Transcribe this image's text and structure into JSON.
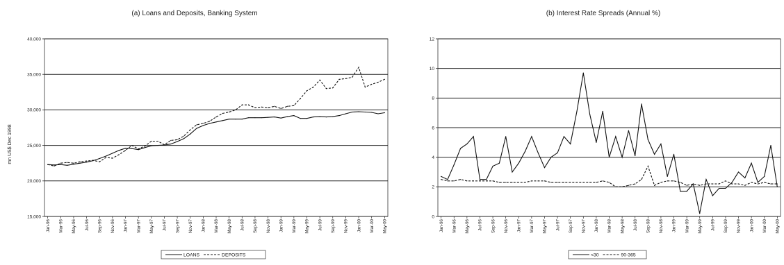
{
  "chart_data": [
    {
      "type": "line",
      "title": "(a) Loans and Deposits, Banking System",
      "ylabel": "mn US$ Dec 1998",
      "xlabel": "",
      "ylim": [
        15000,
        40000
      ],
      "yticks": [
        "15,000",
        "20,000",
        "25,000",
        "30,000",
        "35,000",
        "40,000"
      ],
      "ytick_values": [
        15000,
        20000,
        25000,
        30000,
        35000,
        40000
      ],
      "grid": "horizontal",
      "legend_position": "bottom",
      "x": [
        "Jan-96",
        "Feb-96",
        "Mar-96",
        "Apr-96",
        "May-96",
        "Jun-96",
        "Jul-96",
        "Aug-96",
        "Sep-96",
        "Oct-96",
        "Nov-96",
        "Dec-96",
        "Jan-97",
        "Feb-97",
        "Mar-97",
        "Apr-97",
        "May-97",
        "Jun-97",
        "Jul-97",
        "Aug-97",
        "Sep-97",
        "Oct-97",
        "Nov-97",
        "Dec-97",
        "Jan-98",
        "Feb-98",
        "Mar-98",
        "Apr-98",
        "May-98",
        "Jun-98",
        "Jul-98",
        "Aug-98",
        "Sep-98",
        "Oct-98",
        "Nov-98",
        "Dec-98",
        "Jan-99",
        "Feb-99",
        "Mar-99",
        "Apr-99",
        "May-99",
        "Jun-99",
        "Jul-99",
        "Aug-99",
        "Sep-99",
        "Oct-99",
        "Nov-99",
        "Dec-99",
        "Jan-00",
        "Feb-00",
        "Mar-00",
        "Apr-00",
        "May-00"
      ],
      "xtick_labels": [
        "Jan-96",
        "Mar-96",
        "May-96",
        "Jul-96",
        "Sep-96",
        "Nov-96",
        "Jan-97",
        "Mar-97",
        "May-97",
        "Jul-97",
        "Sep-97",
        "Nov-97",
        "Jan-98",
        "Mar-98",
        "May-98",
        "Jul-98",
        "Sep-98",
        "Nov-98",
        "Jan-99",
        "Mar-99",
        "May-99",
        "Jul-99",
        "Sep-99",
        "Nov-99",
        "Jan-00",
        "Mar-00",
        "May-00"
      ],
      "series": [
        {
          "name": "LOANS",
          "style": "solid",
          "values": [
            22300,
            22250,
            22300,
            22200,
            22350,
            22500,
            22650,
            22850,
            23150,
            23500,
            23900,
            24300,
            24600,
            24550,
            24400,
            24700,
            24950,
            25000,
            25050,
            25200,
            25550,
            25950,
            26600,
            27400,
            27800,
            28100,
            28300,
            28500,
            28700,
            28700,
            28700,
            28900,
            28900,
            28900,
            28950,
            29000,
            28850,
            29050,
            29200,
            28800,
            28800,
            29000,
            29050,
            29000,
            29050,
            29200,
            29450,
            29700,
            29750,
            29700,
            29650,
            29450,
            29600
          ]
        },
        {
          "name": "DEPOSITS",
          "style": "dashed",
          "values": [
            22300,
            22100,
            22500,
            22600,
            22500,
            22700,
            22800,
            22900,
            22700,
            23300,
            23200,
            23700,
            24300,
            25000,
            24500,
            24900,
            25600,
            25600,
            25100,
            25700,
            25800,
            26300,
            27200,
            27900,
            28100,
            28400,
            29000,
            29500,
            29700,
            30000,
            30700,
            30700,
            30300,
            30400,
            30300,
            30500,
            30200,
            30500,
            30600,
            31600,
            32700,
            33200,
            34200,
            33000,
            33100,
            34300,
            34400,
            34600,
            36000,
            33200,
            33600,
            33900,
            34300
          ]
        }
      ]
    },
    {
      "type": "line",
      "title": "(b) Interest Rate Spreads (Annual %)",
      "ylabel": "",
      "xlabel": "",
      "ylim": [
        0,
        12
      ],
      "yticks": [
        "0",
        "2",
        "4",
        "6",
        "8",
        "10",
        "12"
      ],
      "ytick_values": [
        0,
        2,
        4,
        6,
        8,
        10,
        12
      ],
      "grid": "horizontal",
      "legend_position": "bottom",
      "x": [
        "Jan-96",
        "Feb-96",
        "Mar-96",
        "Apr-96",
        "May-96",
        "Jun-96",
        "Jul-96",
        "Aug-96",
        "Sep-96",
        "Oct-96",
        "Nov-96",
        "Dec-96",
        "Jan-97",
        "Feb-97",
        "Mar-97",
        "Apr-97",
        "May-97",
        "Jun-97",
        "Jul-97",
        "Aug-97",
        "Sep-97",
        "Oct-97",
        "Nov-97",
        "Dec-97",
        "Jan-98",
        "Feb-98",
        "Mar-98",
        "Apr-98",
        "May-98",
        "Jun-98",
        "Jul-98",
        "Aug-98",
        "Sep-98",
        "Oct-98",
        "Nov-98",
        "Dec-98",
        "Jan-99",
        "Feb-99",
        "Mar-99",
        "Apr-99",
        "May-99",
        "Jun-99",
        "Jul-99",
        "Aug-99",
        "Sep-99",
        "Oct-99",
        "Nov-99",
        "Dec-99",
        "Jan-00",
        "Feb-00",
        "Mar-00",
        "Apr-00",
        "May-00"
      ],
      "xtick_labels": [
        "Jan-96",
        "Mar-96",
        "May-96",
        "Jul-96",
        "Sep-96",
        "Nov-96",
        "Jan-97",
        "Mar-97",
        "May-97",
        "Jul-97",
        "Sep-97",
        "Nov-97",
        "Jan-98",
        "Mar-98",
        "May-98",
        "Jul-98",
        "Sep-98",
        "Nov-98",
        "Jan-99",
        "Mar-99",
        "May-99",
        "Jul-99",
        "Sep-99",
        "Nov-99",
        "Jan-00",
        "Mar-00",
        "May-00"
      ],
      "series": [
        {
          "name": "<30",
          "style": "solid",
          "values": [
            2.7,
            2.5,
            3.5,
            4.6,
            4.9,
            5.4,
            2.5,
            2.5,
            3.4,
            3.6,
            5.4,
            3.0,
            3.6,
            4.4,
            5.4,
            4.3,
            3.3,
            4.0,
            4.3,
            5.4,
            4.9,
            7.1,
            9.7,
            6.9,
            5.0,
            7.1,
            4.0,
            5.4,
            4.0,
            5.8,
            4.1,
            7.6,
            5.2,
            4.2,
            4.9,
            2.7,
            4.2,
            1.7,
            1.7,
            2.2,
            0.2,
            2.5,
            1.4,
            1.9,
            1.9,
            2.3,
            3.0,
            2.6,
            3.6,
            2.3,
            2.7,
            4.8,
            2.0
          ]
        },
        {
          "name": "90-365",
          "style": "dashed",
          "values": [
            2.5,
            2.4,
            2.4,
            2.5,
            2.4,
            2.4,
            2.4,
            2.4,
            2.4,
            2.3,
            2.3,
            2.3,
            2.3,
            2.3,
            2.4,
            2.4,
            2.4,
            2.3,
            2.3,
            2.3,
            2.3,
            2.3,
            2.3,
            2.3,
            2.3,
            2.4,
            2.3,
            2.0,
            2.0,
            2.1,
            2.2,
            2.5,
            3.4,
            2.1,
            2.3,
            2.4,
            2.4,
            2.3,
            2.1,
            2.2,
            2.1,
            2.2,
            2.2,
            2.2,
            2.4,
            2.2,
            2.2,
            2.1,
            2.3,
            2.2,
            2.3,
            2.2,
            2.2
          ]
        }
      ]
    }
  ]
}
